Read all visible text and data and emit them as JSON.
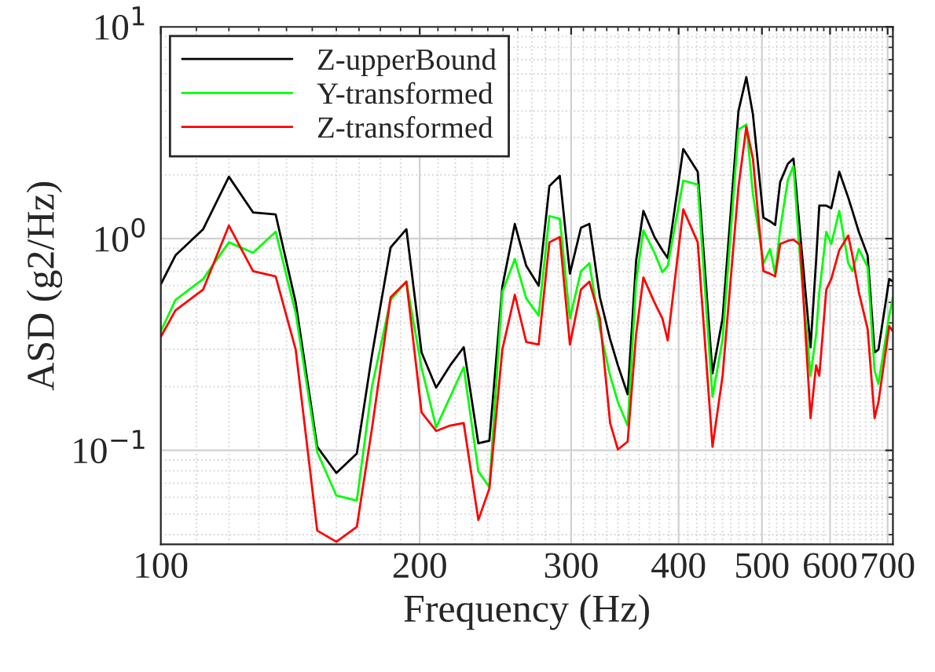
{
  "chart_data": {
    "type": "line",
    "xlabel": "Frequency (Hz)",
    "ylabel": "ASD (g2/Hz)",
    "log": "xy",
    "grid": true,
    "legend": "top left",
    "line_style": "solid",
    "xlim": [
      100,
      710
    ],
    "xticks": [
      100,
      200,
      300,
      400,
      500,
      600,
      700
    ],
    "ylim": [
      0.036,
      10
    ],
    "yticks": [
      {
        "value": 0.1,
        "label": "10$^{−1}$"
      },
      {
        "value": 1,
        "label": "10$^{0}$"
      },
      {
        "value": 10,
        "label": "10$^{1}$"
      }
    ],
    "x": [
      100,
      104,
      112,
      120,
      128,
      136,
      143.5,
      152,
      160,
      169,
      176,
      185,
      193,
      201,
      209,
      217,
      225,
      234,
      241,
      249.5,
      258,
      266,
      275,
      283,
      291,
      299,
      308,
      315,
      324,
      333,
      340,
      349,
      357,
      364,
      375,
      383,
      388.5,
      405,
      421,
      438,
      450,
      469.5,
      479.5,
      488,
      502,
      511,
      518,
      525,
      536,
      544,
      554,
      569.5,
      578,
      583,
      594,
      602,
      615,
      630,
      637,
      648,
      663.5,
      676,
      683,
      703,
      710
    ],
    "series": [
      {
        "name": "Z-upperBound",
        "color": "#000000",
        "values": [
          0.609,
          0.833,
          1.108,
          1.96,
          1.33,
          1.3,
          0.499,
          0.104,
          0.0782,
          0.0966,
          0.282,
          0.908,
          1.108,
          0.29,
          0.198,
          0.252,
          0.307,
          0.108,
          0.111,
          0.592,
          1.173,
          0.744,
          0.599,
          1.77,
          1.98,
          0.683,
          1.127,
          1.173,
          0.528,
          0.335,
          0.252,
          0.184,
          0.787,
          1.353,
          1.017,
          0.882,
          0.81,
          2.65,
          2.07,
          0.231,
          0.42,
          4.0,
          5.79,
          3.88,
          1.256,
          1.207,
          1.16,
          1.85,
          2.26,
          2.39,
          1.047,
          0.307,
          0.787,
          1.432,
          1.432,
          1.392,
          2.07,
          1.56,
          1.353,
          1.077,
          0.833,
          0.29,
          0.299,
          0.645,
          0.627
        ]
      },
      {
        "name": "Y-transformed",
        "color": "#00ff00",
        "values": [
          0.365,
          0.513,
          0.645,
          0.961,
          0.857,
          1.077,
          0.445,
          0.0983,
          0.0612,
          0.0579,
          0.2,
          0.513,
          0.627,
          0.245,
          0.1285,
          0.179,
          0.247,
          0.0796,
          0.0671,
          0.559,
          0.801,
          0.522,
          0.433,
          1.278,
          1.242,
          0.42,
          0.702,
          0.765,
          0.375,
          0.225,
          0.169,
          0.131,
          0.627,
          1.095,
          0.857,
          0.694,
          0.744,
          1.88,
          1.8,
          0.179,
          0.335,
          3.27,
          3.46,
          1.63,
          0.765,
          0.892,
          0.683,
          1.108,
          1.9,
          2.2,
          0.787,
          0.225,
          0.354,
          0.559,
          1.077,
          0.944,
          1.353,
          0.765,
          0.702,
          0.892,
          0.735,
          0.238,
          0.206,
          0.433,
          0.528
        ]
      },
      {
        "name": "Z-transformed",
        "color": "#ff0000",
        "values": [
          0.344,
          0.458,
          0.575,
          1.153,
          0.702,
          0.663,
          0.299,
          0.0418,
          0.037,
          0.0435,
          0.127,
          0.528,
          0.627,
          0.151,
          0.1235,
          0.131,
          0.1345,
          0.0469,
          0.066,
          0.299,
          0.543,
          0.325,
          0.316,
          0.961,
          1.017,
          0.316,
          0.575,
          0.627,
          0.42,
          0.1345,
          0.101,
          0.11,
          0.354,
          0.656,
          0.499,
          0.42,
          0.331,
          1.376,
          0.961,
          0.104,
          0.225,
          1.75,
          3.37,
          2.39,
          0.702,
          0.683,
          0.663,
          0.944,
          0.977,
          0.989,
          0.934,
          0.142,
          0.252,
          0.225,
          0.575,
          0.645,
          0.882,
          1.035,
          0.833,
          0.559,
          0.375,
          0.142,
          0.169,
          0.386,
          0.365
        ]
      }
    ]
  }
}
